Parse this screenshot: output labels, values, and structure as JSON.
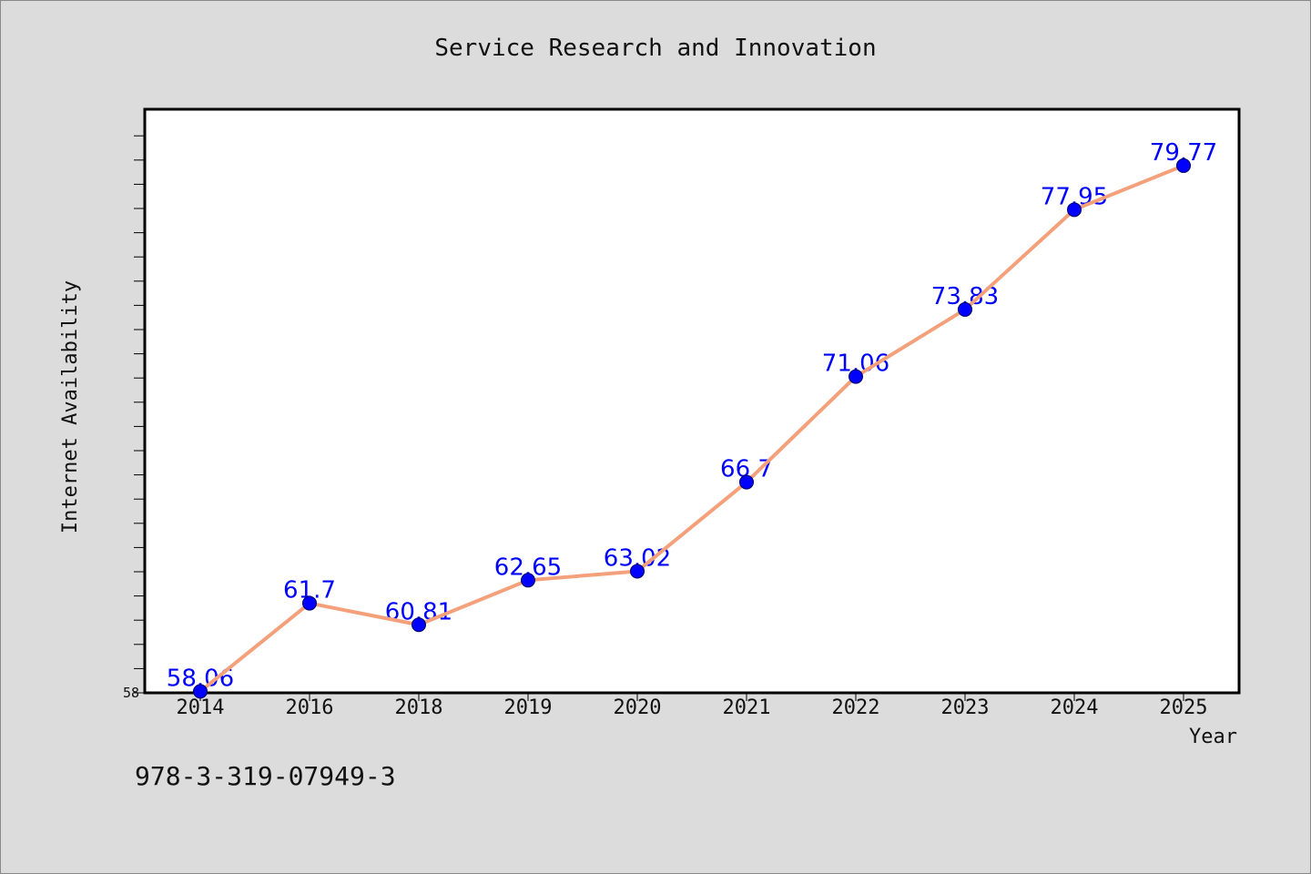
{
  "chart_data": {
    "type": "line",
    "title": "Service Research and Innovation",
    "xlabel": "Year",
    "ylabel": "Internet Availability",
    "categories": [
      "2014",
      "2016",
      "2018",
      "2019",
      "2020",
      "2021",
      "2022",
      "2023",
      "2024",
      "2025"
    ],
    "series": [
      {
        "values": [
          58.06,
          61.7,
          60.81,
          62.65,
          63.02,
          66.7,
          71.06,
          73.83,
          77.95,
          79.77
        ],
        "labels": [
          "58.06",
          "61.7",
          "60.81",
          "62.65",
          "63.02",
          "66.7",
          "71.06",
          "73.83",
          "77.95",
          "79.77"
        ],
        "line_color": "#f4a07a",
        "marker_color": "#0000ff",
        "label_color": "#0000ff"
      }
    ],
    "ylim": [
      58,
      82
    ],
    "yticks_labeled": [
      "58"
    ],
    "grid": false,
    "legend": "none"
  },
  "footnote": "978-3-319-07949-3",
  "colors": {
    "background": "#dcdcdc",
    "plot_background": "#ffffff",
    "axis": "#000000"
  }
}
